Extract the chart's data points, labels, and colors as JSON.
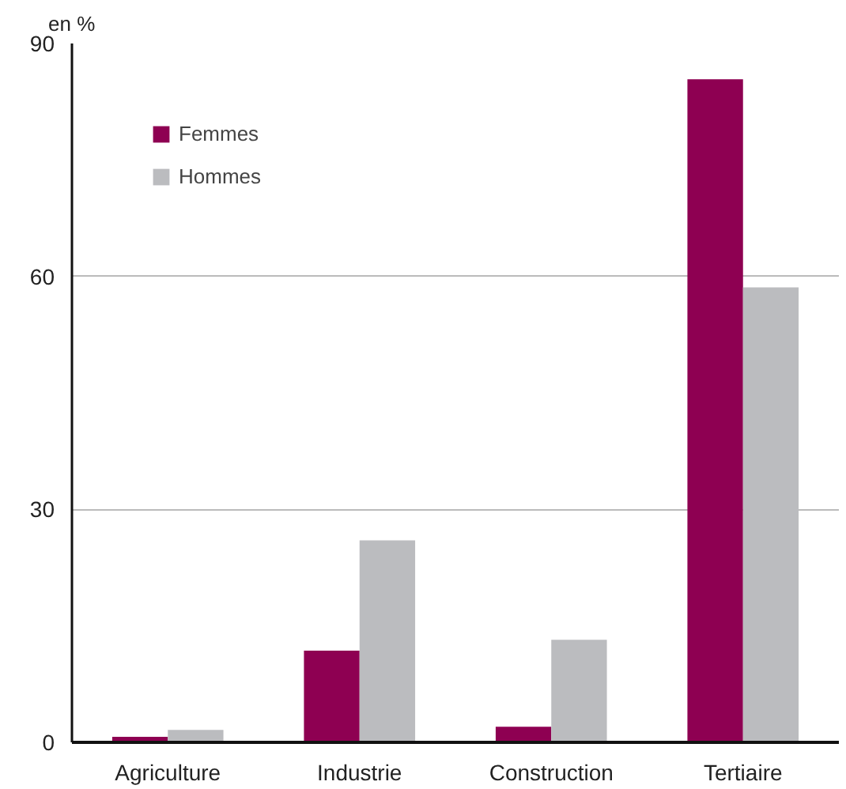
{
  "chart_data": {
    "type": "bar",
    "ylabel": "en %",
    "categories": [
      "Agriculture",
      "Industrie",
      "Construction",
      "Tertiaire"
    ],
    "series": [
      {
        "name": "Femmes",
        "color": "#8e0052",
        "values": [
          0.7,
          11.8,
          2.0,
          85.4
        ]
      },
      {
        "name": "Hommes",
        "color": "#bbbcbf",
        "values": [
          1.6,
          26.0,
          13.2,
          58.6
        ]
      }
    ],
    "ylim": [
      0,
      90
    ],
    "yticks": [
      0,
      30,
      60,
      90
    ],
    "grid": "y",
    "legend": "top left"
  }
}
